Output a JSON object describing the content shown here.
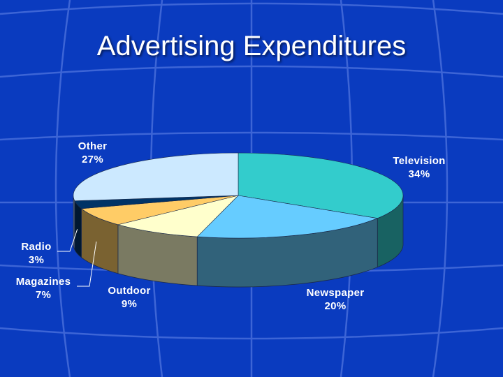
{
  "slide": {
    "title": "Advertising Expenditures"
  },
  "chart_data": {
    "type": "pie",
    "title": "Advertising Expenditures",
    "categories": [
      "Television",
      "Newspaper",
      "Outdoor",
      "Magazines",
      "Radio",
      "Other"
    ],
    "values": [
      34,
      20,
      9,
      7,
      3,
      27
    ],
    "unit": "%",
    "labels": [
      {
        "name": "Television",
        "value": "34%"
      },
      {
        "name": "Newspaper",
        "value": "20%"
      },
      {
        "name": "Outdoor",
        "value": "9%"
      },
      {
        "name": "Magazines",
        "value": "7%"
      },
      {
        "name": "Radio",
        "value": "3%"
      },
      {
        "name": "Other",
        "value": "27%"
      }
    ],
    "colors": [
      "#33cccc",
      "#66ccff",
      "#ffffcc",
      "#ffcc66",
      "#003366",
      "#cce9ff"
    ],
    "style": "3d-pie",
    "legend": "none"
  },
  "theme": {
    "background": "#0a3bbf",
    "grid_line": "#3d65d6"
  }
}
